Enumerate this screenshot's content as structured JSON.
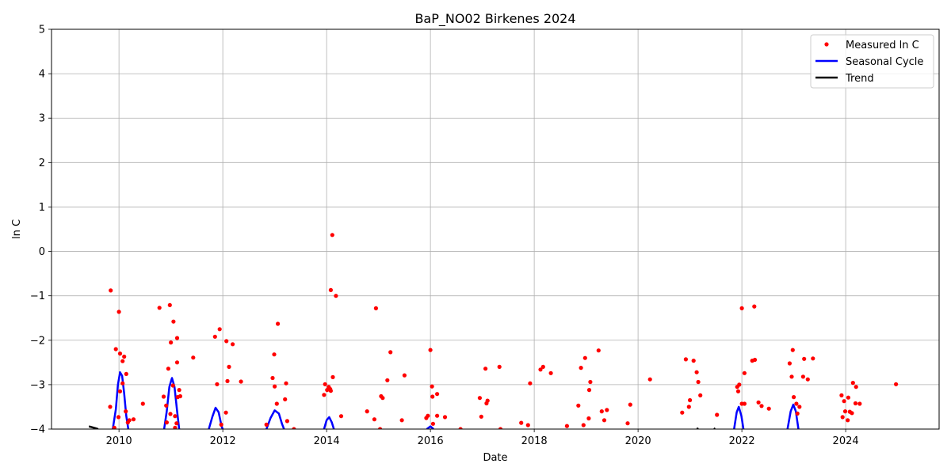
{
  "chart_data": {
    "type": "scatter",
    "title": "BaP_NO02 Birkenes 2024",
    "xlabel": "Date",
    "ylabel": "ln C",
    "xlim": [
      2008.7,
      2025.8
    ],
    "ylim": [
      -4,
      5
    ],
    "x_ticks": [
      2010,
      2012,
      2014,
      2016,
      2018,
      2020,
      2022,
      2024
    ],
    "y_ticks": [
      -4,
      -3,
      -2,
      -1,
      0,
      1,
      2,
      3,
      4,
      5
    ],
    "grid": true,
    "legend_position": "top-right",
    "colors": {
      "measured": "#ff0000",
      "seasonal": "#0000ff",
      "trend": "#000000"
    },
    "series": [
      {
        "name": "Measured ln C",
        "kind": "points",
        "points": [
          [
            2009.84,
            -0.88
          ],
          [
            2009.83,
            -3.5
          ],
          [
            2009.94,
            -2.2
          ],
          [
            2010.0,
            -1.36
          ],
          [
            2010.02,
            -2.3
          ],
          [
            2009.91,
            -3.97
          ],
          [
            2009.99,
            -3.73
          ],
          [
            2010.02,
            -3.15
          ],
          [
            2010.07,
            -2.47
          ],
          [
            2010.1,
            -2.37
          ],
          [
            2010.07,
            -2.97
          ],
          [
            2010.14,
            -2.76
          ],
          [
            2010.13,
            -3.6
          ],
          [
            2010.2,
            -3.8
          ],
          [
            2010.17,
            -3.85
          ],
          [
            2010.28,
            -3.78
          ],
          [
            2010.46,
            -3.43
          ],
          [
            2010.78,
            -1.27
          ],
          [
            2010.86,
            -3.27
          ],
          [
            2010.91,
            -3.47
          ],
          [
            2010.95,
            -2.64
          ],
          [
            2010.98,
            -1.21
          ],
          [
            2011.0,
            -2.05
          ],
          [
            2011.05,
            -1.58
          ],
          [
            2011.04,
            -3.02
          ],
          [
            2011.12,
            -1.95
          ],
          [
            2011.12,
            -2.5
          ],
          [
            2011.16,
            -3.12
          ],
          [
            2011.18,
            -3.26
          ],
          [
            2011.13,
            -3.28
          ],
          [
            2010.99,
            -3.66
          ],
          [
            2010.92,
            -3.85
          ],
          [
            2011.08,
            -3.71
          ],
          [
            2011.08,
            -3.97
          ],
          [
            2011.11,
            -3.87
          ],
          [
            2011.43,
            -2.39
          ],
          [
            2011.85,
            -1.92
          ],
          [
            2011.94,
            -1.75
          ],
          [
            2011.89,
            -2.99
          ],
          [
            2011.97,
            -3.9
          ],
          [
            2012.06,
            -3.63
          ],
          [
            2012.07,
            -2.02
          ],
          [
            2012.12,
            -2.6
          ],
          [
            2012.09,
            -2.92
          ],
          [
            2012.19,
            -2.09
          ],
          [
            2012.35,
            -2.93
          ],
          [
            2012.84,
            -3.9
          ],
          [
            2012.96,
            -2.85
          ],
          [
            2012.99,
            -2.32
          ],
          [
            2013.06,
            -1.63
          ],
          [
            2013.0,
            -3.04
          ],
          [
            2013.04,
            -3.43
          ],
          [
            2013.2,
            -3.33
          ],
          [
            2013.22,
            -2.97
          ],
          [
            2013.24,
            -3.82
          ],
          [
            2013.37,
            -4.0
          ],
          [
            2013.95,
            -3.23
          ],
          [
            2013.97,
            -2.99
          ],
          [
            2014.01,
            -3.12
          ],
          [
            2014.04,
            -3.05
          ],
          [
            2014.07,
            -3.1
          ],
          [
            2014.08,
            -3.14
          ],
          [
            2014.08,
            -0.87
          ],
          [
            2014.11,
            0.37
          ],
          [
            2014.12,
            -2.83
          ],
          [
            2014.18,
            -1.0
          ],
          [
            2014.28,
            -3.71
          ],
          [
            2014.78,
            -3.6
          ],
          [
            2014.92,
            -3.78
          ],
          [
            2014.95,
            -1.28
          ],
          [
            2015.05,
            -3.26
          ],
          [
            2015.08,
            -3.3
          ],
          [
            2015.03,
            -4.0
          ],
          [
            2015.17,
            -2.9
          ],
          [
            2015.23,
            -2.27
          ],
          [
            2015.45,
            -3.8
          ],
          [
            2015.5,
            -2.79
          ],
          [
            2015.92,
            -3.75
          ],
          [
            2015.95,
            -3.7
          ],
          [
            2016.0,
            -2.22
          ],
          [
            2016.03,
            -3.04
          ],
          [
            2016.04,
            -3.27
          ],
          [
            2016.05,
            -3.88
          ],
          [
            2016.13,
            -3.21
          ],
          [
            2016.13,
            -3.7
          ],
          [
            2016.28,
            -3.73
          ],
          [
            2016.58,
            -4.0
          ],
          [
            2016.95,
            -3.3
          ],
          [
            2016.98,
            -3.72
          ],
          [
            2017.06,
            -2.64
          ],
          [
            2017.08,
            -3.42
          ],
          [
            2017.1,
            -3.36
          ],
          [
            2017.33,
            -2.6
          ],
          [
            2017.35,
            -4.0
          ],
          [
            2017.75,
            -3.86
          ],
          [
            2017.88,
            -3.91
          ],
          [
            2017.92,
            -2.97
          ],
          [
            2018.12,
            -2.66
          ],
          [
            2018.17,
            -2.6
          ],
          [
            2018.32,
            -2.74
          ],
          [
            2018.63,
            -3.93
          ],
          [
            2018.85,
            -3.47
          ],
          [
            2018.9,
            -2.62
          ],
          [
            2018.95,
            -3.91
          ],
          [
            2018.98,
            -2.4
          ],
          [
            2019.05,
            -3.76
          ],
          [
            2019.06,
            -3.12
          ],
          [
            2019.08,
            -2.94
          ],
          [
            2019.24,
            -2.23
          ],
          [
            2019.3,
            -3.6
          ],
          [
            2019.35,
            -3.8
          ],
          [
            2019.4,
            -3.57
          ],
          [
            2019.8,
            -3.87
          ],
          [
            2019.85,
            -3.45
          ],
          [
            2020.23,
            -2.88
          ],
          [
            2020.85,
            -3.63
          ],
          [
            2020.92,
            -2.43
          ],
          [
            2020.98,
            -3.5
          ],
          [
            2021.0,
            -3.35
          ],
          [
            2021.07,
            -2.46
          ],
          [
            2021.13,
            -2.72
          ],
          [
            2021.16,
            -2.94
          ],
          [
            2021.2,
            -3.24
          ],
          [
            2021.52,
            -3.68
          ],
          [
            2021.91,
            -3.05
          ],
          [
            2021.93,
            -3.15
          ],
          [
            2021.95,
            -3.0
          ],
          [
            2022.0,
            -1.28
          ],
          [
            2022.0,
            -3.43
          ],
          [
            2022.05,
            -3.43
          ],
          [
            2022.05,
            -2.74
          ],
          [
            2022.2,
            -2.46
          ],
          [
            2022.24,
            -1.24
          ],
          [
            2022.25,
            -2.44
          ],
          [
            2022.32,
            -3.4
          ],
          [
            2022.38,
            -3.48
          ],
          [
            2022.52,
            -3.54
          ],
          [
            2022.92,
            -2.52
          ],
          [
            2022.96,
            -2.82
          ],
          [
            2022.98,
            -2.22
          ],
          [
            2023.0,
            -3.28
          ],
          [
            2023.05,
            -3.43
          ],
          [
            2023.07,
            -3.65
          ],
          [
            2023.11,
            -3.5
          ],
          [
            2023.18,
            -2.82
          ],
          [
            2023.2,
            -2.42
          ],
          [
            2023.27,
            -2.88
          ],
          [
            2023.37,
            -2.41
          ],
          [
            2023.92,
            -3.24
          ],
          [
            2023.94,
            -3.73
          ],
          [
            2023.97,
            -3.37
          ],
          [
            2023.99,
            -3.6
          ],
          [
            2024.05,
            -3.29
          ],
          [
            2024.04,
            -3.8
          ],
          [
            2024.08,
            -3.61
          ],
          [
            2024.12,
            -3.64
          ],
          [
            2024.14,
            -2.96
          ],
          [
            2024.2,
            -3.05
          ],
          [
            2024.19,
            -3.42
          ],
          [
            2024.27,
            -3.43
          ],
          [
            2024.97,
            -2.99
          ]
        ]
      },
      {
        "name": "Seasonal Cycle",
        "kind": "line",
        "segments": [
          [
            [
              2009.88,
              -4.0
            ],
            [
              2009.94,
              -3.55
            ],
            [
              2009.98,
              -3.0
            ],
            [
              2010.02,
              -2.72
            ],
            [
              2010.06,
              -2.8
            ],
            [
              2010.1,
              -3.2
            ],
            [
              2010.14,
              -3.7
            ],
            [
              2010.18,
              -4.0
            ]
          ],
          [
            [
              2010.87,
              -4.0
            ],
            [
              2010.92,
              -3.6
            ],
            [
              2010.97,
              -3.05
            ],
            [
              2011.02,
              -2.85
            ],
            [
              2011.07,
              -3.05
            ],
            [
              2011.12,
              -3.6
            ],
            [
              2011.16,
              -4.0
            ]
          ],
          [
            [
              2011.73,
              -4.0
            ],
            [
              2011.8,
              -3.72
            ],
            [
              2011.86,
              -3.52
            ],
            [
              2011.92,
              -3.62
            ],
            [
              2011.98,
              -3.95
            ],
            [
              2012.0,
              -4.0
            ]
          ],
          [
            [
              2012.84,
              -4.0
            ],
            [
              2012.92,
              -3.75
            ],
            [
              2013.0,
              -3.58
            ],
            [
              2013.08,
              -3.65
            ],
            [
              2013.14,
              -3.88
            ],
            [
              2013.18,
              -4.0
            ]
          ],
          [
            [
              2013.95,
              -4.0
            ],
            [
              2014.0,
              -3.8
            ],
            [
              2014.05,
              -3.73
            ],
            [
              2014.1,
              -3.85
            ],
            [
              2014.14,
              -4.0
            ]
          ],
          [
            [
              2015.93,
              -4.0
            ],
            [
              2016.0,
              -3.94
            ],
            [
              2016.06,
              -4.0
            ]
          ],
          [
            [
              2021.85,
              -4.0
            ],
            [
              2021.9,
              -3.62
            ],
            [
              2021.94,
              -3.5
            ],
            [
              2021.99,
              -3.7
            ],
            [
              2022.03,
              -4.0
            ]
          ],
          [
            [
              2022.88,
              -4.0
            ],
            [
              2022.94,
              -3.6
            ],
            [
              2022.99,
              -3.45
            ],
            [
              2023.04,
              -3.6
            ],
            [
              2023.09,
              -4.0
            ]
          ]
        ]
      },
      {
        "name": "Trend",
        "kind": "line",
        "segments": [
          [
            [
              2009.42,
              -3.94
            ],
            [
              2009.55,
              -3.98
            ],
            [
              2009.6,
              -4.0
            ]
          ],
          [
            [
              2021.13,
              -3.98
            ],
            [
              2021.16,
              -4.0
            ]
          ],
          [
            [
              2021.46,
              -3.98
            ],
            [
              2021.48,
              -4.0
            ]
          ]
        ]
      }
    ]
  }
}
